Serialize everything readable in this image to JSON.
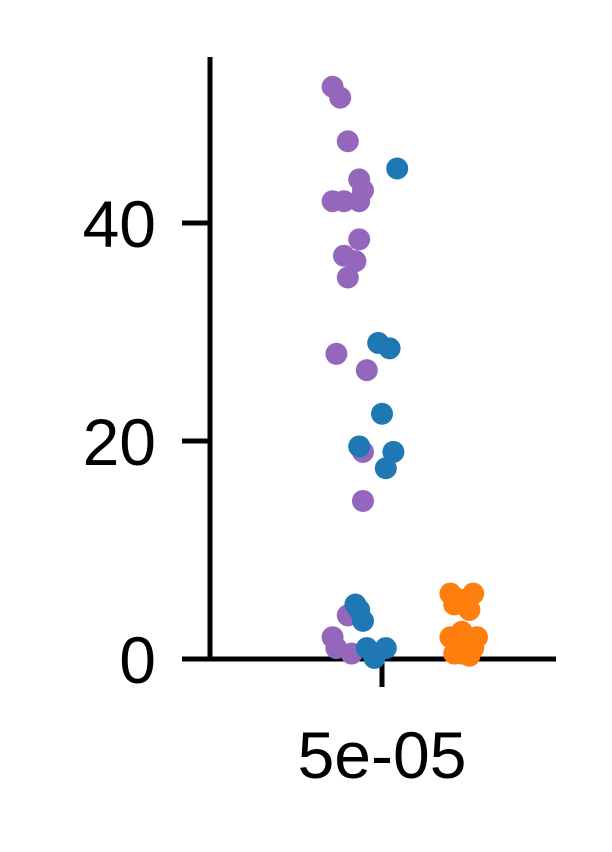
{
  "chart_data": {
    "type": "scatter",
    "title": "",
    "xlabel": "",
    "ylabel": "",
    "categories": [
      "5e-05"
    ],
    "ylim": [
      0,
      55
    ],
    "yticks": [
      0,
      20,
      40
    ],
    "ytick_labels": [
      "0",
      "20",
      "40"
    ],
    "xtick_labels": [
      "5e-05"
    ],
    "grid": false,
    "legend": "none",
    "series": [
      {
        "name": "series-purple",
        "color": "#9467bd",
        "jitter": [
          -0.13,
          -0.11,
          -0.09,
          -0.06,
          -0.05,
          -0.1,
          -0.13,
          -0.06,
          -0.06,
          -0.1,
          -0.07,
          -0.09,
          -0.12,
          -0.04,
          -0.05,
          -0.05,
          -0.09,
          -0.13,
          -0.12,
          -0.08
        ],
        "values": [
          52.5,
          51.5,
          47.5,
          44,
          43,
          42,
          42,
          42,
          38.5,
          37,
          36.5,
          35,
          28,
          26.5,
          19,
          14.5,
          4,
          2,
          1,
          0.5
        ]
      },
      {
        "name": "series-blue",
        "color": "#1f77b4",
        "jitter": [
          0.04,
          -0.01,
          0.02,
          0,
          -0.06,
          0.03,
          0.01,
          -0.07,
          -0.06,
          -0.05,
          -0.04,
          0.01,
          -0.02
        ],
        "values": [
          45,
          29,
          28.5,
          22.5,
          19.5,
          19,
          17.5,
          5,
          4.5,
          3.5,
          1,
          1,
          0.1
        ]
      },
      {
        "name": "series-orange",
        "color": "#ff7f0e",
        "jitter": [
          0.18,
          0.24,
          0.2,
          0.22,
          0.19,
          0.23,
          0.21,
          0.18,
          0.25,
          0.2,
          0.22,
          0.24,
          0.19,
          0.21,
          0.23
        ],
        "values": [
          6,
          6,
          5.5,
          5,
          5,
          4.5,
          2.5,
          2,
          2,
          1.5,
          1,
          1,
          0.5,
          0.5,
          0.3
        ]
      }
    ]
  }
}
